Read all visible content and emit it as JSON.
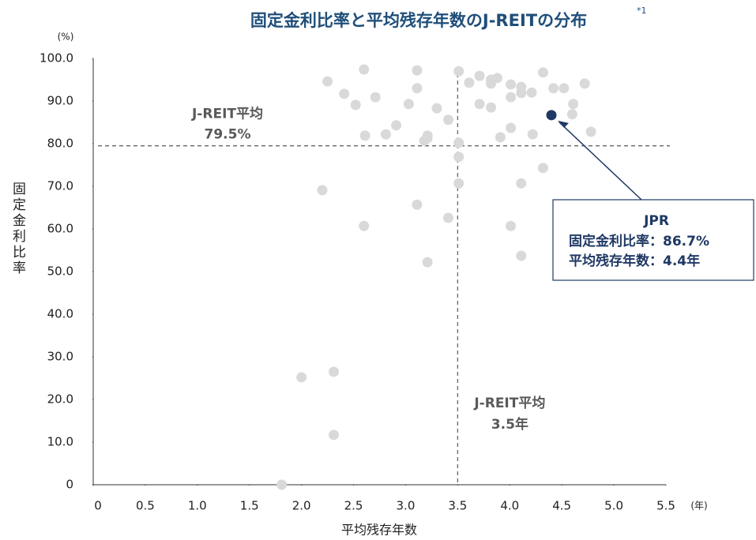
{
  "chart_data": {
    "type": "scatter",
    "title": "固定金利比率と平均残存年数のJ-REITの分布",
    "title_note": "*1",
    "x_label": "平均残存年数",
    "x_unit": "(年)",
    "y_label": "固定金利比率",
    "y_unit": "(%)",
    "xlim": [
      0,
      5.5
    ],
    "ylim": [
      0,
      100
    ],
    "xticks": [
      0,
      0.5,
      {
        "value": 1,
        "label": "1.0"
      },
      1.5,
      {
        "value": 2,
        "label": "2.0"
      },
      2.5,
      {
        "value": 3,
        "label": "3.0"
      },
      3.5,
      {
        "value": 4,
        "label": "4.0"
      },
      4.5,
      {
        "value": 5,
        "label": "5.0"
      },
      5.5
    ],
    "yticks": [
      0,
      {
        "value": 10,
        "label": "10.0"
      },
      {
        "value": 20,
        "label": "20.0"
      },
      {
        "value": 30,
        "label": "30.0"
      },
      {
        "value": 40,
        "label": "40.0"
      },
      {
        "value": 50,
        "label": "50.0"
      },
      {
        "value": 60,
        "label": "60.0"
      },
      {
        "value": 70,
        "label": "70.0"
      },
      {
        "value": 80,
        "label": "80.0"
      },
      {
        "value": 90,
        "label": "90.0"
      },
      {
        "value": 100,
        "label": "100.0"
      }
    ],
    "series": [
      {
        "color": "#d9d9d9",
        "x": [
          2.25,
          2.6,
          3.11,
          3.51,
          2.41,
          2.52,
          2.71,
          3.03,
          3.11,
          3.3,
          3.41,
          2.91,
          2.81,
          2.61,
          3.21,
          3.18,
          3.21,
          3.51,
          3.51,
          3.51,
          3.61,
          3.71,
          3.82,
          3.88,
          3.82,
          3.71,
          3.82,
          4.01,
          4.11,
          4.32,
          4.42,
          4.52,
          4.72,
          4.01,
          4.11,
          4.21,
          4.61,
          4.6,
          4.78,
          4.01,
          3.91,
          4.22,
          4.32,
          4.11,
          4.01,
          4.11,
          2.2,
          2.6,
          3.11,
          3.21,
          3.41,
          2.0,
          2.31,
          2.31,
          1.81
        ],
        "values": [
          94.6,
          97.4,
          97.2,
          97.0,
          91.7,
          89.1,
          90.9,
          89.3,
          93.0,
          88.3,
          85.6,
          84.3,
          82.2,
          81.9,
          81.9,
          80.7,
          81.3,
          80.2,
          76.9,
          70.7,
          94.3,
          95.9,
          95.0,
          95.4,
          94.1,
          89.3,
          88.5,
          93.9,
          93.3,
          96.7,
          93.0,
          93.0,
          94.1,
          90.9,
          91.9,
          92.0,
          89.3,
          86.9,
          82.8,
          83.7,
          81.5,
          82.2,
          74.3,
          70.7,
          60.7,
          53.7,
          69.1,
          60.7,
          65.7,
          52.2,
          62.6,
          25.2,
          26.5,
          11.7,
          0
        ]
      },
      {
        "name": "JPR",
        "color": "#1f3864",
        "x": [
          4.4
        ],
        "values": [
          86.7
        ]
      }
    ],
    "reference_lines": [
      {
        "axis": "y",
        "value": 79.5,
        "label": "J-REIT平均",
        "value_label": "79.5%"
      },
      {
        "axis": "x",
        "value": 3.5,
        "label": "J-REIT平均",
        "value_label": "3.5年"
      }
    ],
    "annotation": {
      "lines": [
        "固定金利比率：86.7%",
        "平均残存年数：4.4年"
      ]
    }
  }
}
